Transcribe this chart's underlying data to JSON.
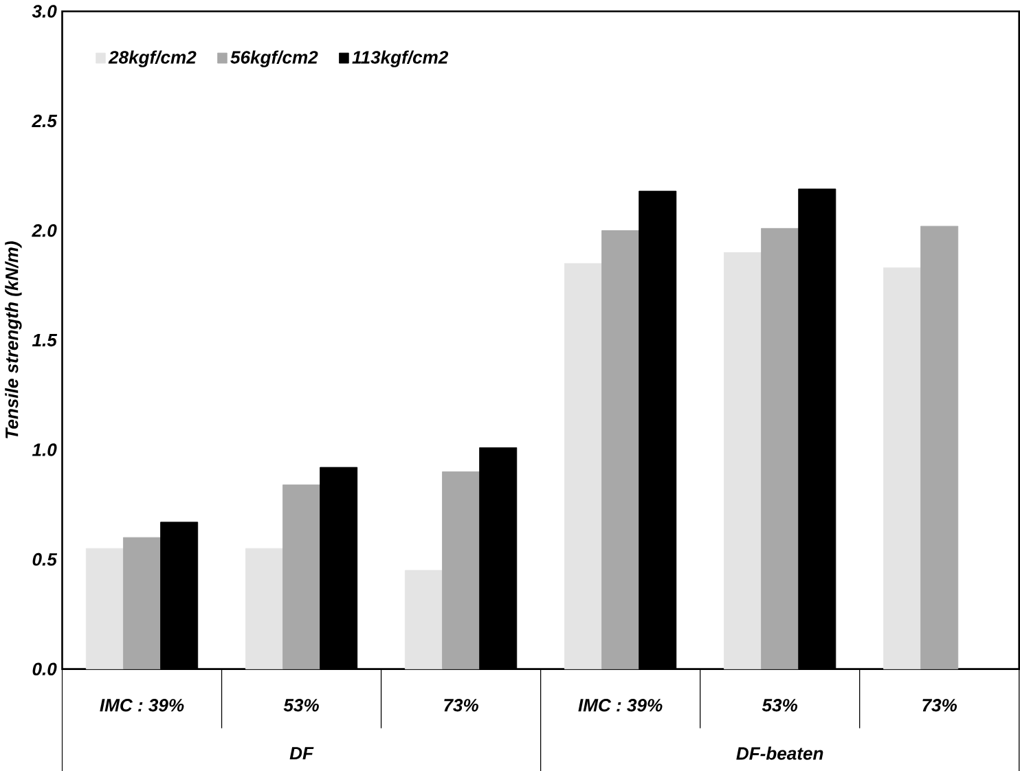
{
  "chart_data": {
    "type": "bar",
    "ylabel": "Tensile strength (kN/m)",
    "categories": [
      "IMC : 39%",
      "53%",
      "73%",
      "IMC : 39%",
      "53%",
      "73%"
    ],
    "series": [
      {
        "name": "28kgf/cm2",
        "color": "#e4e4e4",
        "values": [
          0.55,
          0.55,
          0.45,
          1.85,
          1.9,
          1.83
        ]
      },
      {
        "name": "56kgf/cm2",
        "color": "#a8a8a8",
        "values": [
          0.6,
          0.84,
          0.9,
          2.0,
          2.01,
          2.02
        ]
      },
      {
        "name": "113kgf/cm2",
        "color": "#000000",
        "values": [
          0.67,
          0.92,
          1.01,
          2.18,
          2.19,
          null
        ]
      }
    ],
    "ylim": [
      0,
      3
    ],
    "yticks": [
      {
        "value": 0,
        "label": "0.0"
      },
      {
        "value": 0.5,
        "label": "0.5"
      },
      {
        "value": 1,
        "label": "1.0"
      },
      {
        "value": 1.5,
        "label": "1.5"
      },
      {
        "value": 2,
        "label": "2.0"
      },
      {
        "value": 2.5,
        "label": "2.5"
      },
      {
        "value": 3,
        "label": "3.0"
      }
    ],
    "annotations": [
      "DF",
      "DF-beaten"
    ],
    "legend": "top left",
    "grid": false
  }
}
